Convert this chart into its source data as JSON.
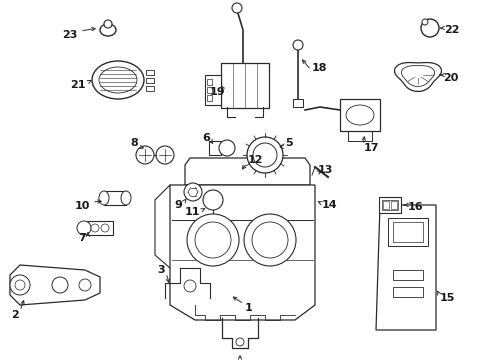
{
  "bg_color": "#ffffff",
  "lc": "#2a2a2a",
  "tc": "#1a1a1a",
  "figsize": [
    4.89,
    3.6
  ],
  "dpi": 100
}
